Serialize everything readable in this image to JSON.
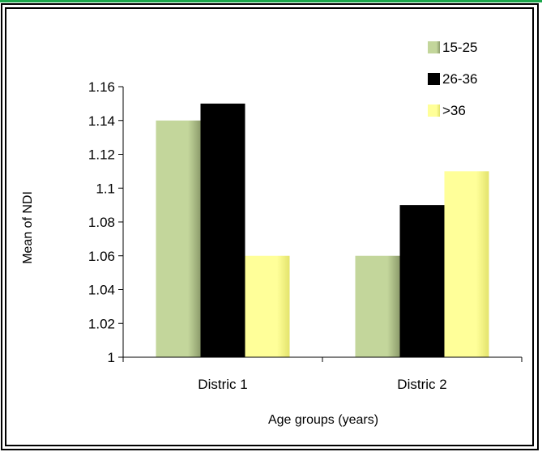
{
  "chart_data": {
    "type": "bar",
    "title": "",
    "xlabel": "Age groups (years)",
    "ylabel": "Mean of NDI",
    "categories": [
      "Distric 1",
      "Distric 2"
    ],
    "series": [
      {
        "name": "15-25",
        "values": [
          1.14,
          1.06
        ],
        "color": "#c3d69b",
        "shade": "#8d9c6c"
      },
      {
        "name": "26-36",
        "values": [
          1.15,
          1.09
        ],
        "color": "#000000",
        "shade": "#000000"
      },
      {
        "name": ">36",
        "values": [
          1.06,
          1.11
        ],
        "color": "#ffff99",
        "shade": "#e3e36c"
      }
    ],
    "ylim": [
      1,
      1.16
    ],
    "yticks": [
      "1",
      "1.02",
      "1.04",
      "1.06",
      "1.08",
      "1.1",
      "1.12",
      "1.14",
      "1.16"
    ],
    "grid": false,
    "legend_position": "top-right"
  }
}
